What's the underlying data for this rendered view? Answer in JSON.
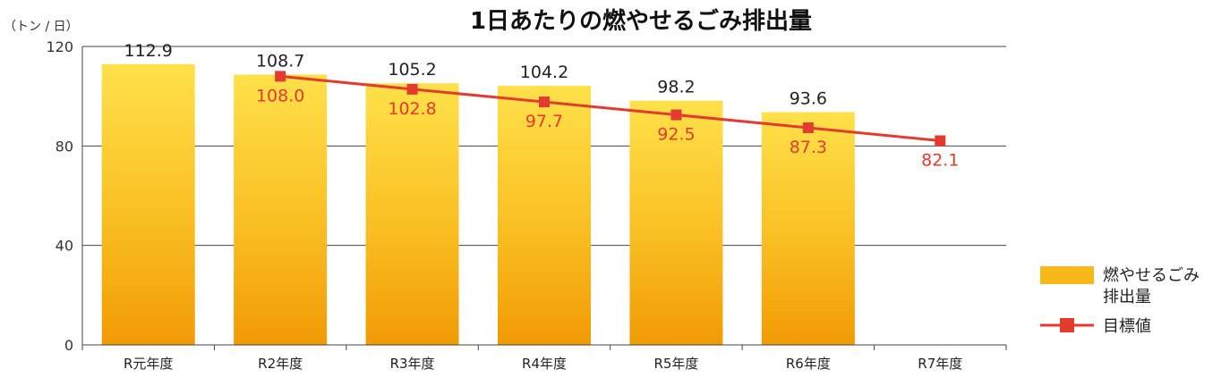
{
  "chart_data": {
    "type": "bar",
    "title": "1日あたりの燃やせるごみ排出量",
    "unit_label": "（トン / 日）",
    "categories": [
      "R元年度",
      "R2年度",
      "R3年度",
      "R4年度",
      "R5年度",
      "R6年度",
      "R7年度"
    ],
    "ylim": [
      0,
      120
    ],
    "yticks": [
      "0",
      "40",
      "80",
      "120"
    ],
    "grid": true,
    "legend_position": "bottom-right",
    "series": [
      {
        "name": "燃やせるごみ排出量",
        "type": "bar",
        "color": "#f8b81a",
        "values": [
          112.9,
          108.7,
          105.2,
          104.2,
          98.2,
          93.6,
          null
        ],
        "labels": [
          "112.9",
          "108.7",
          "105.2",
          "104.2",
          "98.2",
          "93.6",
          ""
        ]
      },
      {
        "name": "目標値",
        "type": "line",
        "color": "#e53a2e",
        "values": [
          null,
          108.0,
          102.8,
          97.7,
          92.5,
          87.3,
          82.1
        ],
        "labels": [
          "",
          "108.0",
          "102.8",
          "97.7",
          "92.5",
          "87.3",
          "82.1"
        ]
      }
    ],
    "legend": {
      "bar_label_line1": "燃やせるごみ",
      "bar_label_line2": "排出量",
      "line_label": "目標値"
    }
  }
}
